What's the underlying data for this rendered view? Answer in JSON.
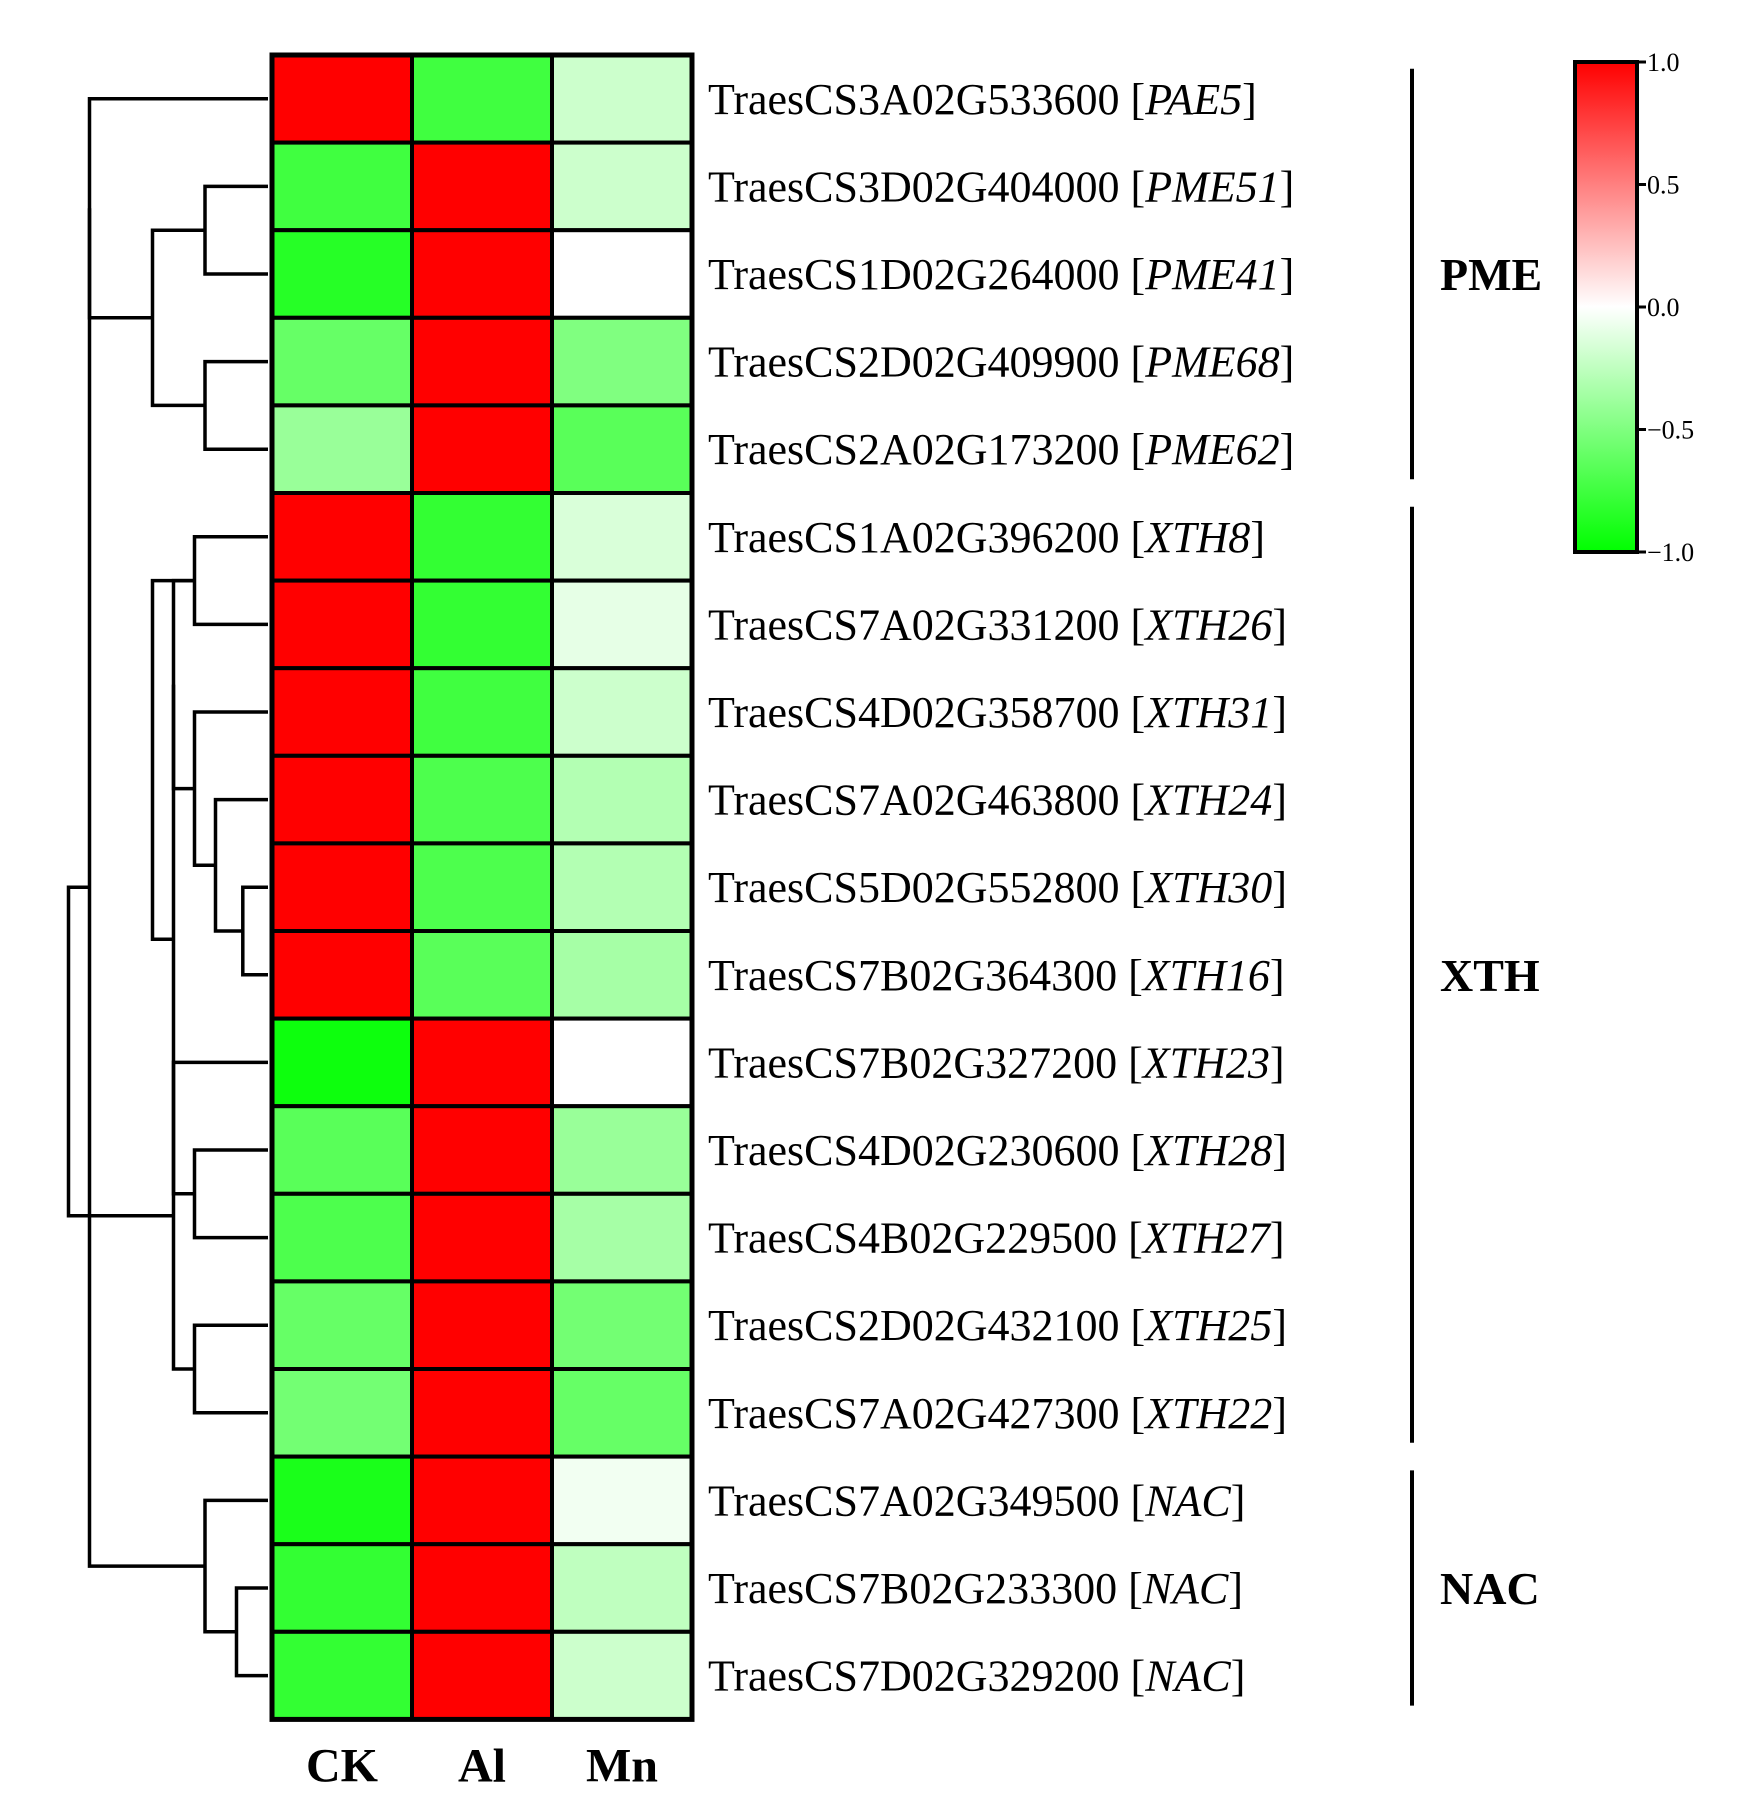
{
  "chart_data": {
    "type": "heatmap",
    "title": "",
    "columns": [
      "CK",
      "Al",
      "Mn"
    ],
    "rows": [
      {
        "gene_id": "TraesCS3A02G533600",
        "symbol": "PAE5",
        "values": [
          1.0,
          -0.75,
          -0.2
        ]
      },
      {
        "gene_id": "TraesCS3D02G404000",
        "symbol": "PME51",
        "values": [
          -0.75,
          1.0,
          -0.2
        ]
      },
      {
        "gene_id": "TraesCS1D02G264000",
        "symbol": "PME41",
        "values": [
          -0.85,
          1.0,
          0.0
        ]
      },
      {
        "gene_id": "TraesCS2D02G409900",
        "symbol": "PME68",
        "values": [
          -0.6,
          1.0,
          -0.5
        ]
      },
      {
        "gene_id": "TraesCS2A02G173200",
        "symbol": "PME62",
        "values": [
          -0.4,
          1.0,
          -0.65
        ]
      },
      {
        "gene_id": "TraesCS1A02G396200",
        "symbol": "XTH8",
        "values": [
          1.0,
          -0.8,
          -0.15
        ]
      },
      {
        "gene_id": "TraesCS7A02G331200",
        "symbol": "XTH26",
        "values": [
          1.0,
          -0.8,
          -0.1
        ]
      },
      {
        "gene_id": "TraesCS4D02G358700",
        "symbol": "XTH31",
        "values": [
          1.0,
          -0.75,
          -0.2
        ]
      },
      {
        "gene_id": "TraesCS7A02G463800",
        "symbol": "XTH24",
        "values": [
          1.0,
          -0.7,
          -0.3
        ]
      },
      {
        "gene_id": "TraesCS5D02G552800",
        "symbol": "XTH30",
        "values": [
          1.0,
          -0.7,
          -0.3
        ]
      },
      {
        "gene_id": "TraesCS7B02G364300",
        "symbol": "XTH16",
        "values": [
          1.0,
          -0.65,
          -0.35
        ]
      },
      {
        "gene_id": "TraesCS7B02G327200",
        "symbol": "XTH23",
        "values": [
          -0.95,
          1.0,
          0.0
        ]
      },
      {
        "gene_id": "TraesCS4D02G230600",
        "symbol": "XTH28",
        "values": [
          -0.65,
          1.0,
          -0.4
        ]
      },
      {
        "gene_id": "TraesCS4B02G229500",
        "symbol": "XTH27",
        "values": [
          -0.7,
          1.0,
          -0.35
        ]
      },
      {
        "gene_id": "TraesCS2D02G432100",
        "symbol": "XTH25",
        "values": [
          -0.6,
          1.0,
          -0.55
        ]
      },
      {
        "gene_id": "TraesCS7A02G427300",
        "symbol": "XTH22",
        "values": [
          -0.55,
          1.0,
          -0.6
        ]
      },
      {
        "gene_id": "TraesCS7A02G349500",
        "symbol": "NAC",
        "values": [
          -0.9,
          1.0,
          -0.05
        ]
      },
      {
        "gene_id": "TraesCS7B02G233300",
        "symbol": "NAC",
        "values": [
          -0.8,
          1.0,
          -0.25
        ]
      },
      {
        "gene_id": "TraesCS7D02G329200",
        "symbol": "NAC",
        "values": [
          -0.8,
          1.0,
          -0.2
        ]
      }
    ],
    "groups": [
      {
        "name": "PME",
        "start_row": 0,
        "end_row": 4
      },
      {
        "name": "XTH",
        "start_row": 5,
        "end_row": 15
      },
      {
        "name": "NAC",
        "start_row": 16,
        "end_row": 18
      }
    ],
    "dendrogram": {
      "leaves": [
        0,
        1,
        2,
        3,
        4,
        5,
        6,
        7,
        8,
        9,
        10,
        11,
        12,
        13,
        14,
        15,
        16,
        17,
        18
      ],
      "merges": [
        [
          1,
          2,
          0.3
        ],
        [
          3,
          4,
          0.3
        ],
        [
          19,
          20,
          0.55
        ],
        [
          0,
          21,
          0.85
        ],
        [
          17,
          18,
          0.15
        ],
        [
          16,
          23,
          0.3
        ],
        [
          22,
          24,
          0.85
        ],
        [
          9,
          10,
          0.12
        ],
        [
          8,
          26,
          0.25
        ],
        [
          7,
          27,
          0.35
        ],
        [
          5,
          6,
          0.35
        ],
        [
          28,
          29,
          0.45
        ],
        [
          12,
          13,
          0.35
        ],
        [
          14,
          15,
          0.35
        ],
        [
          30,
          31,
          0.45
        ],
        [
          11,
          32,
          0.45
        ],
        [
          29,
          33,
          0.55
        ],
        [
          25,
          34,
          0.95
        ]
      ]
    },
    "colorbar": {
      "min": -1.0,
      "max": 1.0,
      "ticks": [
        "1.0",
        "0.5",
        "0.0",
        "−0.5",
        "−1.0"
      ],
      "colors": {
        "low": "#00ff00",
        "mid": "#ffffff",
        "high": "#ff0000"
      }
    },
    "grid": true,
    "legend_position": "top-right"
  }
}
